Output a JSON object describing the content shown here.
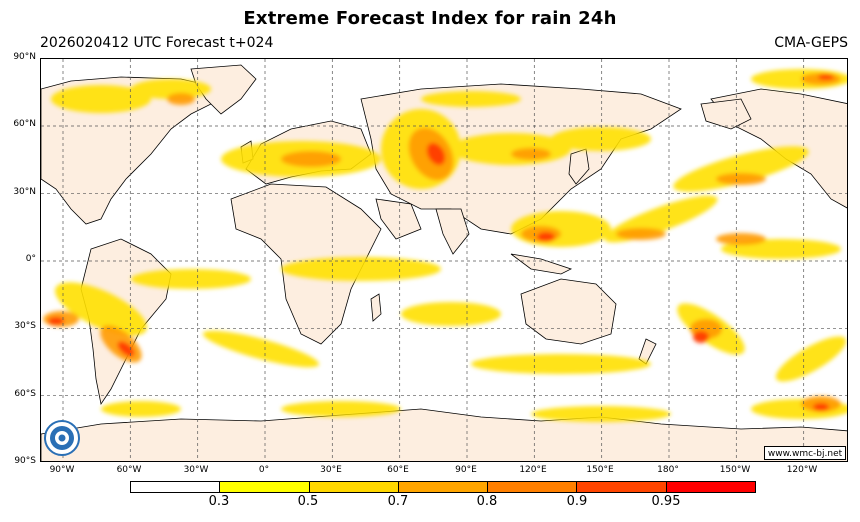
{
  "header": {
    "title": "Extreme Forecast Index for rain 24h",
    "run_info": "2026020412 UTC Forecast t+024",
    "model": "CMA-GEPS"
  },
  "map": {
    "lat_labels": [
      "90°N",
      "60°N",
      "30°N",
      "0°",
      "30°S",
      "60°S",
      "90°S"
    ],
    "lon_labels": [
      "90°W",
      "60°W",
      "30°W",
      "0°",
      "30°E",
      "60°E",
      "90°E",
      "120°E",
      "150°E",
      "180°",
      "150°W",
      "120°W"
    ],
    "credit": "www.wmc-bj.net",
    "colors": {
      "land": "#fdeee0",
      "ocean": "#ffffff",
      "coast": "#000000",
      "grid": "#555555"
    }
  },
  "colorbar": {
    "tick_labels": [
      "0.3",
      "0.5",
      "0.7",
      "0.8",
      "0.9",
      "0.95"
    ],
    "colors": [
      "#ffffff",
      "#ffff00",
      "#ffd700",
      "#ffa500",
      "#ff7f00",
      "#ff4500",
      "#ff0000"
    ]
  },
  "logo": {
    "icon": "wmc-logo-icon"
  }
}
